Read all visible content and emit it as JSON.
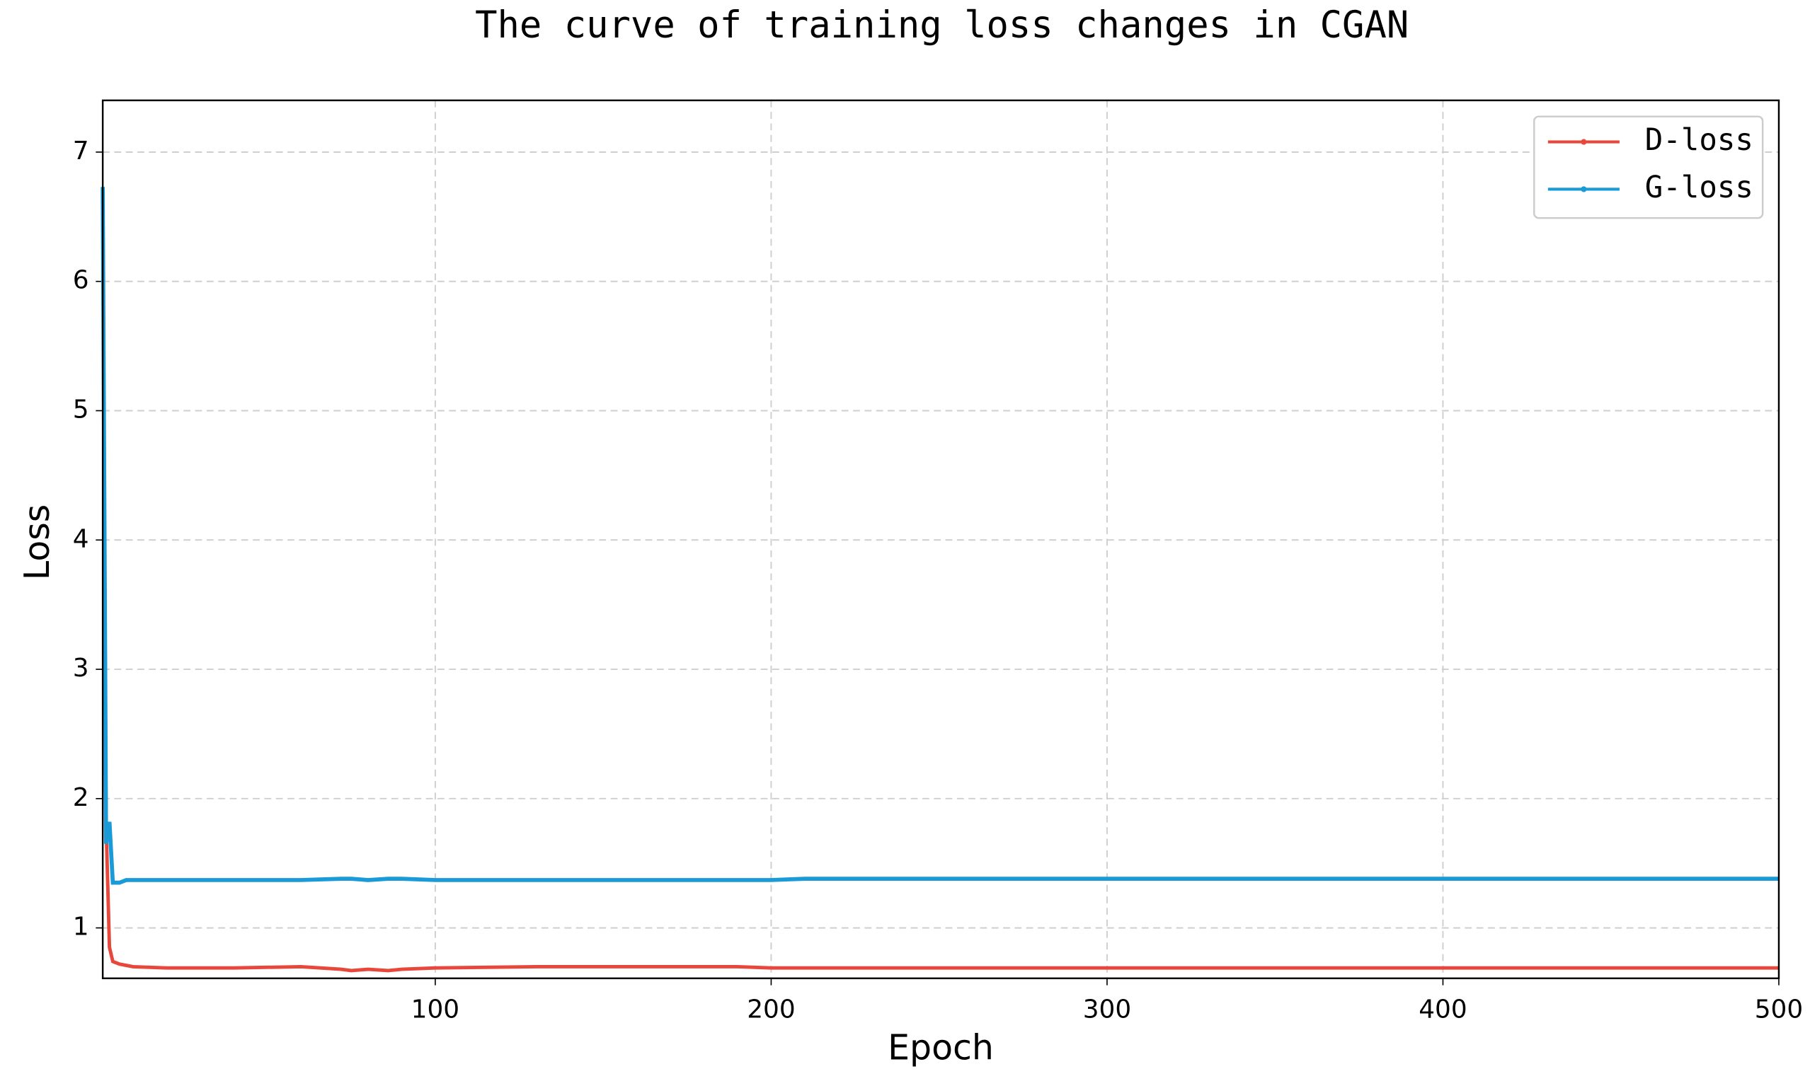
{
  "chart_data": {
    "type": "line",
    "title": "The curve of training loss changes in CGAN",
    "x_label": "Epoch",
    "y_label": "Loss",
    "x": [
      1,
      2,
      3,
      4,
      5,
      6,
      8,
      10,
      20,
      40,
      60,
      72,
      75,
      80,
      86,
      90,
      100,
      130,
      160,
      190,
      200,
      210,
      215,
      222,
      250,
      300,
      350,
      400,
      450,
      500
    ],
    "series": [
      {
        "name": "D-loss",
        "color": "#e8483b",
        "values": [
          6.73,
          1.8,
          0.85,
          0.74,
          0.73,
          0.72,
          0.71,
          0.7,
          0.69,
          0.69,
          0.7,
          0.68,
          0.67,
          0.68,
          0.67,
          0.68,
          0.69,
          0.7,
          0.7,
          0.7,
          0.69,
          0.69,
          0.69,
          0.69,
          0.69,
          0.69,
          0.69,
          0.69,
          0.69,
          0.69
        ]
      },
      {
        "name": "G-loss",
        "color": "#1a9ad6",
        "values": [
          6.73,
          1.65,
          1.82,
          1.35,
          1.35,
          1.35,
          1.37,
          1.37,
          1.37,
          1.37,
          1.37,
          1.38,
          1.38,
          1.37,
          1.38,
          1.38,
          1.37,
          1.37,
          1.37,
          1.37,
          1.37,
          1.38,
          1.38,
          1.38,
          1.38,
          1.38,
          1.38,
          1.38,
          1.38,
          1.38
        ]
      }
    ],
    "xlim": [
      1,
      500
    ],
    "ylim": [
      0.61,
      7.4
    ],
    "xticks": [
      100,
      200,
      300,
      400,
      500
    ],
    "yticks": [
      1,
      2,
      3,
      4,
      5,
      6,
      7
    ],
    "grid": true,
    "legend": "upper right"
  }
}
